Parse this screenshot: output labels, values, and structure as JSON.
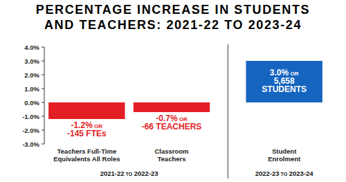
{
  "chart_data": {
    "type": "bar",
    "title": "PERCENTAGE INCREASE IN STUDENTS\nAND TEACHERS: 2021-22 TO 2023-24",
    "categories": [
      "Teachers Full-Time\nEquivalents All Roles",
      "Classroom\nTeachers",
      "Student\nEnrolment"
    ],
    "values": [
      -1.2,
      -0.7,
      3.0
    ],
    "value_labels": [
      "-1.2% OR\n-145 FTEs",
      "-0.7% OR\n-66 TEACHERS",
      "3.0% OR\n5,658\nSTUDENTS"
    ],
    "colors": [
      "#e31e24",
      "#e31e24",
      "#1565c0"
    ],
    "groups": [
      {
        "label": "2021-22 TO 2022-23",
        "size": 2
      },
      {
        "label": "2022-23 TO 2023-24",
        "size": 1
      }
    ],
    "ylim": [
      -3,
      4
    ],
    "yticks": [
      {
        "value": -3,
        "label": "-3.0%"
      },
      {
        "value": -2,
        "label": "-2.0%"
      },
      {
        "value": -1,
        "label": "-1.0%"
      },
      {
        "value": 0,
        "label": "0.0%"
      },
      {
        "value": 1,
        "label": "1.0%"
      },
      {
        "value": 2,
        "label": "2.0%"
      },
      {
        "value": 3,
        "label": "3.0%"
      },
      {
        "value": 4,
        "label": "4.0%"
      }
    ],
    "grid": false,
    "data_labels": true
  }
}
